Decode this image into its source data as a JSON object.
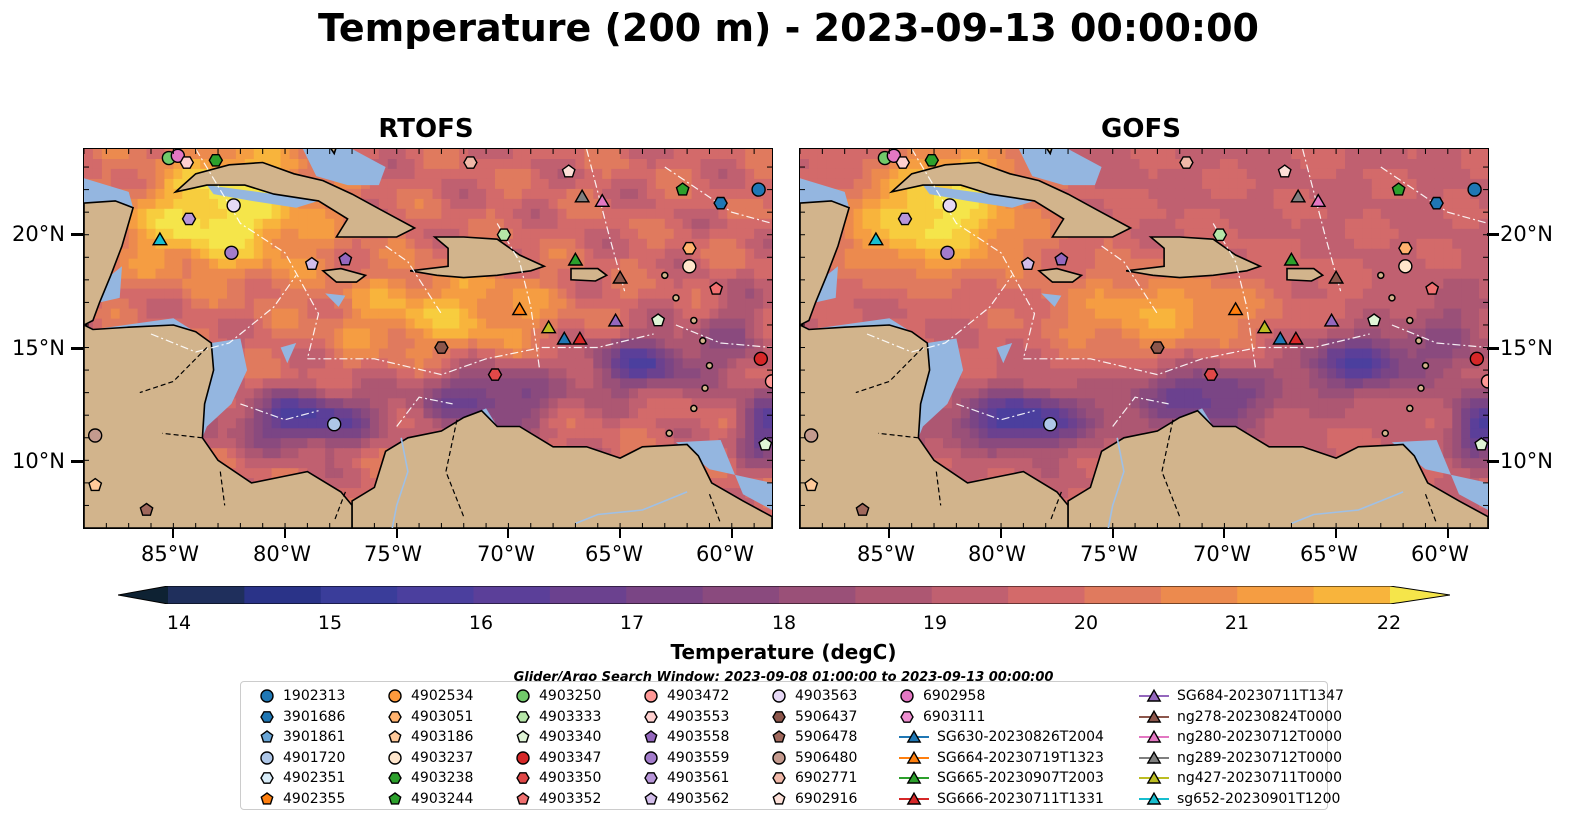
{
  "title": "Temperature (200 m) - 2023-09-13 00:00:00",
  "panels": [
    {
      "title": "RTOFS"
    },
    {
      "title": "GOFS"
    }
  ],
  "lon_ticks": [
    "85°W",
    "80°W",
    "75°W",
    "70°W",
    "65°W",
    "60°W"
  ],
  "lat_ticks": [
    "20°N",
    "15°N",
    "10°N"
  ],
  "colorbar": {
    "label": "Temperature (degC)",
    "min": 14,
    "max": 22,
    "step": 0.5,
    "ticks": [
      "14",
      "15",
      "16",
      "17",
      "18",
      "19",
      "20",
      "21",
      "22"
    ],
    "colors": [
      "#0e2233",
      "#1f2f5c",
      "#2a3388",
      "#3a3d9a",
      "#4b3f9e",
      "#5b3f99",
      "#6b418f",
      "#7a4585",
      "#8a4a7e",
      "#9a5078",
      "#ad5772",
      "#c06070",
      "#d36a6a",
      "#e07a5e",
      "#ec8a4e",
      "#f59d42",
      "#f8b43c",
      "#f7cd3e",
      "#f5e54a"
    ]
  },
  "search_window": "Glider/Argo Search Window: 2023-09-08 01:00:00 to 2023-09-13 00:00:00",
  "legend": [
    {
      "label": "1902313",
      "marker": "circle",
      "color": "#1f77b4"
    },
    {
      "label": "3901686",
      "marker": "hexagon",
      "color": "#1f77b4"
    },
    {
      "label": "3901861",
      "marker": "pentagon",
      "color": "#6aa6d6"
    },
    {
      "label": "4901720",
      "marker": "circle",
      "color": "#aec7e8"
    },
    {
      "label": "4902351",
      "marker": "hexagon",
      "color": "#d8ecf8"
    },
    {
      "label": "4902355",
      "marker": "pentagon",
      "color": "#ff7f0e"
    },
    {
      "label": "4902534",
      "marker": "circle",
      "color": "#ff9a3c"
    },
    {
      "label": "4903051",
      "marker": "hexagon",
      "color": "#ffb26e"
    },
    {
      "label": "4903186",
      "marker": "pentagon",
      "color": "#ffc99a"
    },
    {
      "label": "4903237",
      "marker": "circle",
      "color": "#ffe6cc"
    },
    {
      "label": "4903238",
      "marker": "hexagon",
      "color": "#2ca02c"
    },
    {
      "label": "4903244",
      "marker": "pentagon",
      "color": "#2ca02c"
    },
    {
      "label": "4903250",
      "marker": "circle",
      "color": "#71c96a"
    },
    {
      "label": "4903333",
      "marker": "hexagon",
      "color": "#b6e6a8"
    },
    {
      "label": "4903340",
      "marker": "pentagon",
      "color": "#dff5d6"
    },
    {
      "label": "4903347",
      "marker": "circle",
      "color": "#d62728"
    },
    {
      "label": "4903350",
      "marker": "hexagon",
      "color": "#e04848"
    },
    {
      "label": "4903352",
      "marker": "pentagon",
      "color": "#f07070"
    },
    {
      "label": "4903472",
      "marker": "circle",
      "color": "#ff9896"
    },
    {
      "label": "4903553",
      "marker": "hexagon",
      "color": "#ffd0cf"
    },
    {
      "label": "4903558",
      "marker": "pentagon",
      "color": "#9467bd"
    },
    {
      "label": "4903559",
      "marker": "circle",
      "color": "#a37ccb"
    },
    {
      "label": "4903561",
      "marker": "hexagon",
      "color": "#b795d8"
    },
    {
      "label": "4903562",
      "marker": "pentagon",
      "color": "#d2bdea"
    },
    {
      "label": "4903563",
      "marker": "circle",
      "color": "#e6d8f5"
    },
    {
      "label": "5906437",
      "marker": "hexagon",
      "color": "#8c564b"
    },
    {
      "label": "5906478",
      "marker": "pentagon",
      "color": "#a0685c"
    },
    {
      "label": "5906480",
      "marker": "circle",
      "color": "#c49a8e"
    },
    {
      "label": "6902771",
      "marker": "hexagon",
      "color": "#f0b8a8"
    },
    {
      "label": "6902916",
      "marker": "pentagon",
      "color": "#fde0d8"
    },
    {
      "label": "6902958",
      "marker": "circle",
      "color": "#e377c2"
    },
    {
      "label": "6903111",
      "marker": "hexagon",
      "color": "#ee8fd0"
    },
    {
      "label": "SG630-20230826T2004",
      "marker": "triangle",
      "color": "#1f77b4"
    },
    {
      "label": "SG664-20230719T1323",
      "marker": "triangle",
      "color": "#ff7f0e"
    },
    {
      "label": "SG665-20230907T2003",
      "marker": "triangle",
      "color": "#2ca02c"
    },
    {
      "label": "SG666-20230711T1331",
      "marker": "triangle",
      "color": "#d62728"
    },
    {
      "label": "SG684-20230711T1347",
      "marker": "triangle",
      "color": "#9467bd"
    },
    {
      "label": "ng278-20230824T0000",
      "marker": "triangle",
      "color": "#8c564b"
    },
    {
      "label": "ng280-20230712T0000",
      "marker": "triangle",
      "color": "#e377c2"
    },
    {
      "label": "ng289-20230712T0000",
      "marker": "triangle",
      "color": "#7f7f7f"
    },
    {
      "label": "ng427-20230711T0000",
      "marker": "triangle",
      "color": "#bcbd22"
    },
    {
      "label": "sg652-20230901T1200",
      "marker": "triangle",
      "color": "#17becf"
    }
  ],
  "map_points": [
    {
      "id": "4903250",
      "lon": -85.2,
      "lat": 23.4
    },
    {
      "id": "6902958",
      "lon": -84.8,
      "lat": 23.5
    },
    {
      "id": "4903553",
      "lon": -84.4,
      "lat": 23.2
    },
    {
      "id": "4903238",
      "lon": -83.1,
      "lat": 23.3
    },
    {
      "id": "4903561",
      "lon": -84.3,
      "lat": 20.7
    },
    {
      "id": "4903563",
      "lon": -82.3,
      "lat": 21.3
    },
    {
      "id": "sg652-20230901T1200",
      "lon": -85.6,
      "lat": 19.8
    },
    {
      "id": "4903559",
      "lon": -82.4,
      "lat": 19.2
    },
    {
      "id": "4903562",
      "lon": -78.8,
      "lat": 18.7
    },
    {
      "id": "4903558",
      "lon": -77.3,
      "lat": 18.9
    },
    {
      "id": "4903333",
      "lon": -70.2,
      "lat": 20.0
    },
    {
      "id": "6902771",
      "lon": -71.7,
      "lat": 23.2
    },
    {
      "id": "6902916",
      "lon": -67.3,
      "lat": 22.8
    },
    {
      "id": "ng289-20230712T0000",
      "lon": -66.7,
      "lat": 21.7
    },
    {
      "id": "ng280-20230712T0000",
      "lon": -65.8,
      "lat": 21.5
    },
    {
      "id": "4903244",
      "lon": -62.2,
      "lat": 22.0
    },
    {
      "id": "1902313",
      "lon": -58.8,
      "lat": 22.0
    },
    {
      "id": "3901686",
      "lon": -60.5,
      "lat": 21.4
    },
    {
      "id": "4903051",
      "lon": -61.9,
      "lat": 19.4
    },
    {
      "id": "4903237",
      "lon": -61.9,
      "lat": 18.6
    },
    {
      "id": "4903352",
      "lon": -60.7,
      "lat": 17.6
    },
    {
      "id": "SG665-20230907T2003",
      "lon": -67.0,
      "lat": 18.9
    },
    {
      "id": "ng278-20230824T0000",
      "lon": -65.0,
      "lat": 18.1
    },
    {
      "id": "SG664-20230719T1323",
      "lon": -69.5,
      "lat": 16.7
    },
    {
      "id": "ng427-20230711T0000",
      "lon": -68.2,
      "lat": 15.9
    },
    {
      "id": "SG630-20230826T2004",
      "lon": -67.5,
      "lat": 15.4
    },
    {
      "id": "SG666-20230711T1331",
      "lon": -66.8,
      "lat": 15.4
    },
    {
      "id": "SG684-20230711T1347",
      "lon": -65.2,
      "lat": 16.2
    },
    {
      "id": "4903340",
      "lon": -63.3,
      "lat": 16.2
    },
    {
      "id": "5906437",
      "lon": -73.0,
      "lat": 15.0
    },
    {
      "id": "4903350",
      "lon": -70.6,
      "lat": 13.8
    },
    {
      "id": "4903347",
      "lon": -58.7,
      "lat": 14.5
    },
    {
      "id": "4903472",
      "lon": -58.2,
      "lat": 13.5
    },
    {
      "id": "4901720",
      "lon": -77.8,
      "lat": 11.6
    },
    {
      "id": "5906480",
      "lon": -88.5,
      "lat": 11.1
    },
    {
      "id": "4903186",
      "lon": -88.5,
      "lat": 8.9
    },
    {
      "id": "5906478",
      "lon": -86.2,
      "lat": 7.8
    },
    {
      "id": "4903340",
      "lon": -58.5,
      "lat": 10.7
    }
  ]
}
